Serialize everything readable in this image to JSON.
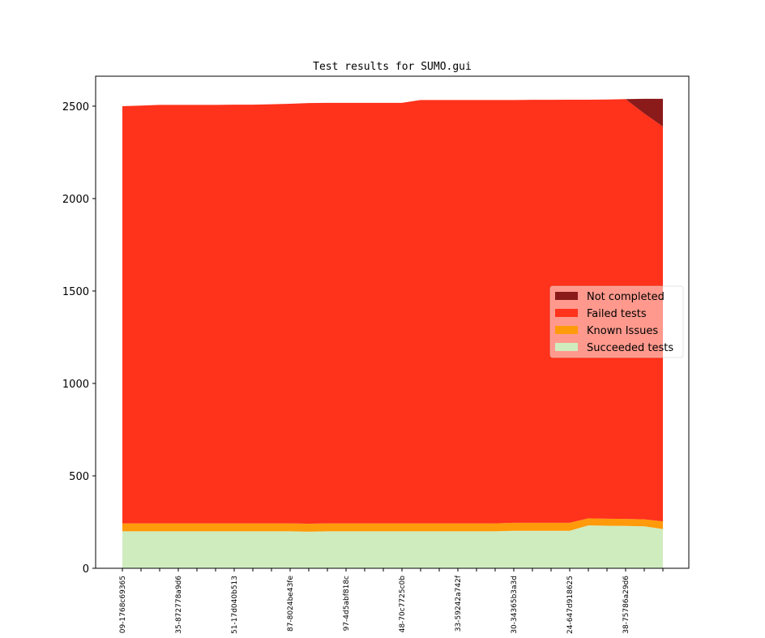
{
  "chart_data": {
    "type": "stacked-area",
    "title": "Test results for SUMO.gui",
    "categories": [
      "09-1768c69365",
      null,
      null,
      "35-872778a9d6",
      null,
      null,
      "51-17d040b513",
      null,
      null,
      "87-8024be43fe",
      null,
      null,
      "97-4d5abf818c",
      null,
      null,
      "48-70c7725c0b",
      null,
      null,
      "33-59242a742f",
      null,
      null,
      "30-34365b3a3d",
      null,
      null,
      "24-647d918625",
      null,
      null,
      "38-75786a29d6",
      null,
      null
    ],
    "series": [
      {
        "name": "Succeeded tests",
        "color": "#cfecbf",
        "values": [
          200,
          200,
          200,
          200,
          200,
          200,
          200,
          200,
          200,
          200,
          198,
          200,
          200,
          200,
          200,
          200,
          200,
          200,
          200,
          200,
          200,
          203,
          203,
          203,
          203,
          232,
          230,
          229,
          227,
          212
        ]
      },
      {
        "name": "Known Issues",
        "color": "#ff9a0a",
        "values": [
          43,
          43,
          43,
          43,
          43,
          43,
          43,
          43,
          43,
          43,
          43,
          43,
          43,
          43,
          43,
          43,
          43,
          43,
          43,
          43,
          43,
          43,
          43,
          43,
          43,
          38,
          38,
          38,
          38,
          42
        ]
      },
      {
        "name": "Failed tests",
        "color": "#ff321b",
        "values": [
          2257,
          2260,
          2264,
          2264,
          2264,
          2264,
          2265,
          2265,
          2267,
          2270,
          2276,
          2275,
          2275,
          2275,
          2275,
          2275,
          2290,
          2290,
          2290,
          2290,
          2290,
          2287,
          2288,
          2288,
          2289,
          2265,
          2268,
          2271,
          2195,
          2136
        ]
      },
      {
        "name": "Not completed",
        "color": "#8b1a1a",
        "values": [
          0,
          0,
          0,
          0,
          0,
          0,
          0,
          0,
          0,
          0,
          0,
          0,
          0,
          0,
          0,
          0,
          0,
          0,
          0,
          0,
          0,
          0,
          0,
          0,
          0,
          0,
          0,
          0,
          80,
          150
        ]
      }
    ],
    "ylim": [
      0,
      2662
    ],
    "yticks": [
      0,
      500,
      1000,
      1500,
      2000,
      2500
    ],
    "legend": "right"
  }
}
